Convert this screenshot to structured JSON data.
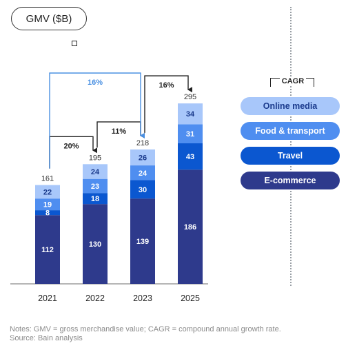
{
  "header": {
    "unit_label": "GMV ($B)"
  },
  "legend": {
    "title": "CAGR",
    "items": [
      {
        "label": "Online media",
        "color": "#a8c7fa",
        "text_color": "#1a3a8c"
      },
      {
        "label": "Food & transport",
        "color": "#4f8ef0",
        "text_color": "#ffffff"
      },
      {
        "label": "Travel",
        "color": "#0b57d0",
        "text_color": "#ffffff"
      },
      {
        "label": "E-commerce",
        "color": "#2e3a8c",
        "text_color": "#ffffff"
      }
    ]
  },
  "notes": {
    "line1": "Notes: GMV = gross merchandise value; CAGR = compound annual growth rate.",
    "line2": "Source: Bain analysis"
  },
  "chart_data": {
    "type": "bar",
    "stacked": true,
    "categories": [
      "2021",
      "2022",
      "2023",
      "2025"
    ],
    "series": [
      {
        "name": "E-commerce",
        "values": [
          112,
          130,
          139,
          186
        ],
        "color": "#2e3a8c"
      },
      {
        "name": "Travel",
        "values": [
          8,
          18,
          30,
          43
        ],
        "color": "#0b57d0"
      },
      {
        "name": "Food & transport",
        "values": [
          19,
          23,
          24,
          31
        ],
        "color": "#4f8ef0"
      },
      {
        "name": "Online media",
        "values": [
          22,
          24,
          26,
          34
        ],
        "color": "#a8c7fa"
      }
    ],
    "totals": [
      161,
      195,
      218,
      295
    ],
    "growth_annotations": [
      {
        "label": "20%",
        "from": "2021",
        "to": "2022",
        "color": "#222222"
      },
      {
        "label": "11%",
        "from": "2022",
        "to": "2023",
        "color": "#222222"
      },
      {
        "label": "16%",
        "from": "2023",
        "to": "2025",
        "color": "#222222"
      },
      {
        "label": "16%",
        "from": "2021",
        "to": "2023",
        "color": "#4a90e2"
      }
    ],
    "ylabel": "GMV ($B)"
  }
}
